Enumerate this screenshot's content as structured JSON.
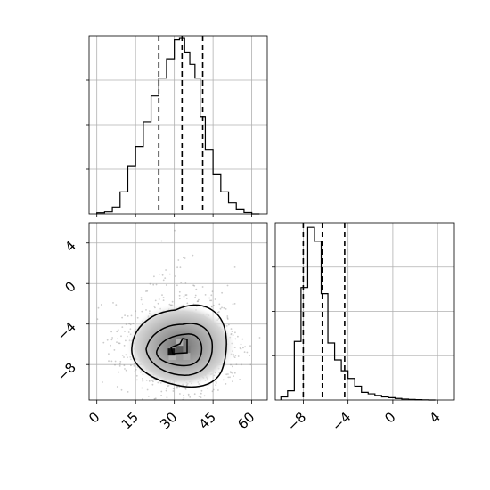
{
  "colors": {
    "ink": "#000000",
    "grid": "#b0b0b0",
    "scatter": "#8c8c8c",
    "background": "#ffffff"
  },
  "chart_data": [
    {
      "type": "histogram",
      "panel": "marginal-x",
      "bins": [
        0,
        3,
        6,
        9,
        12,
        15,
        18,
        21,
        24,
        27,
        30,
        32,
        34,
        36,
        38,
        40,
        42,
        45,
        48,
        51,
        54,
        57,
        60,
        63
      ],
      "counts": [
        0.8,
        1.5,
        5,
        16,
        35,
        49,
        67,
        86,
        99,
        113,
        127,
        128,
        118,
        109,
        99,
        71,
        47,
        29,
        16,
        8,
        3,
        1,
        0
      ],
      "quantiles": [
        24,
        33,
        41
      ],
      "xlim": [
        -3,
        66
      ],
      "ylim": [
        0,
        130
      ],
      "grid": true
    },
    {
      "type": "heatmap",
      "panel": "joint-density",
      "x_ticks": [
        "0",
        "15",
        "30",
        "45",
        "60"
      ],
      "y_ticks": [
        "4",
        "0",
        "−4",
        "−8"
      ],
      "x_tick_values": [
        0,
        15,
        30,
        45,
        60
      ],
      "y_tick_values": [
        4,
        0,
        -4,
        -8
      ],
      "xlim": [
        -3,
        66
      ],
      "ylim": [
        -11.5,
        6
      ],
      "peak": {
        "x": 32,
        "y": -6.5
      },
      "contour_levels": [
        "outer",
        "mid",
        "inner",
        "core"
      ],
      "grid": true
    },
    {
      "type": "histogram",
      "panel": "marginal-y",
      "bins": [
        -10,
        -9.4,
        -8.8,
        -8.2,
        -7.6,
        -7,
        -6.4,
        -5.8,
        -5.2,
        -4.6,
        -4,
        -3.4,
        -2.8,
        -2.2,
        -1.6,
        -1,
        -0.4,
        0.2,
        0.8,
        1.4,
        2,
        2.6,
        3.2,
        3.8
      ],
      "counts": [
        2,
        6,
        38,
        73,
        112,
        103,
        69,
        37,
        26,
        19,
        14,
        9,
        5,
        4,
        3,
        2,
        1.5,
        1,
        0.6,
        0.4,
        0.2,
        0.1,
        0
      ],
      "quantiles": [
        -8,
        -6.3,
        -4.3
      ],
      "x_ticks": [
        "−8",
        "−4",
        "0",
        "4"
      ],
      "x_tick_values": [
        -8,
        -4,
        0,
        4
      ],
      "xlim": [
        -10.5,
        5.5
      ],
      "ylim": [
        0,
        115
      ],
      "grid": true
    }
  ]
}
